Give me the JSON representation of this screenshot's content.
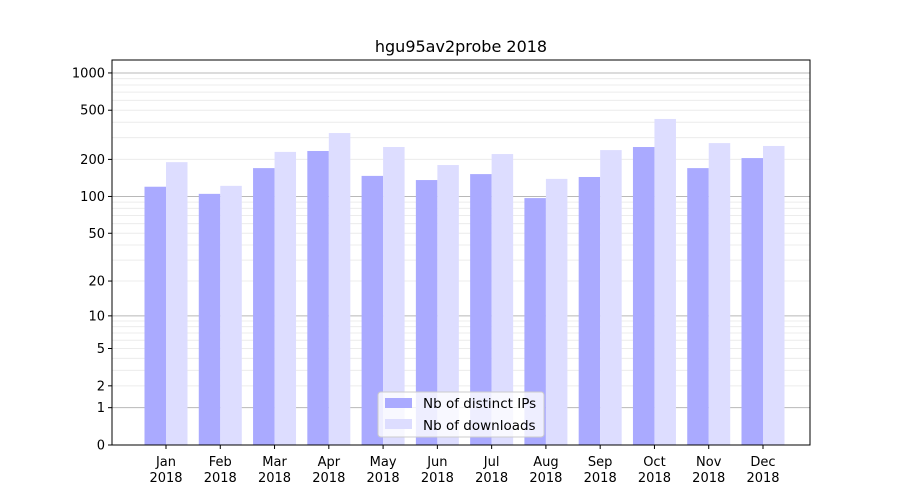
{
  "chart_data": {
    "type": "bar",
    "title": "hgu95av2probe 2018",
    "xlabel": "",
    "ylabel": "",
    "yscale": "symlog (log10(1+y))",
    "ylim": [
      0,
      1300
    ],
    "yticks": [
      0,
      1,
      2,
      5,
      10,
      20,
      50,
      100,
      200,
      500,
      1000
    ],
    "ytick_labels": [
      "0",
      "1",
      "2",
      "5",
      "10",
      "20",
      "50",
      "100",
      "200",
      "500",
      "1000"
    ],
    "categories": [
      "Jan\n2018",
      "Feb\n2018",
      "Mar\n2018",
      "Apr\n2018",
      "May\n2018",
      "Jun\n2018",
      "Jul\n2018",
      "Aug\n2018",
      "Sep\n2018",
      "Oct\n2018",
      "Nov\n2018",
      "Dec\n2018"
    ],
    "category_lines": [
      [
        "Jan",
        "2018"
      ],
      [
        "Feb",
        "2018"
      ],
      [
        "Mar",
        "2018"
      ],
      [
        "Apr",
        "2018"
      ],
      [
        "May",
        "2018"
      ],
      [
        "Jun",
        "2018"
      ],
      [
        "Jul",
        "2018"
      ],
      [
        "Aug",
        "2018"
      ],
      [
        "Sep",
        "2018"
      ],
      [
        "Oct",
        "2018"
      ],
      [
        "Nov",
        "2018"
      ],
      [
        "Dec",
        "2018"
      ]
    ],
    "series": [
      {
        "name": "Nb of distinct IPs",
        "color": "#aaaaff",
        "values": [
          120,
          105,
          170,
          234,
          147,
          136,
          152,
          97,
          144,
          252,
          170,
          205
        ]
      },
      {
        "name": "Nb of downloads",
        "color": "#ddddff",
        "values": [
          190,
          122,
          230,
          327,
          252,
          180,
          221,
          139,
          238,
          425,
          271,
          257
        ]
      }
    ],
    "grid": "horizontal major and minor",
    "legend": "lower-center"
  }
}
